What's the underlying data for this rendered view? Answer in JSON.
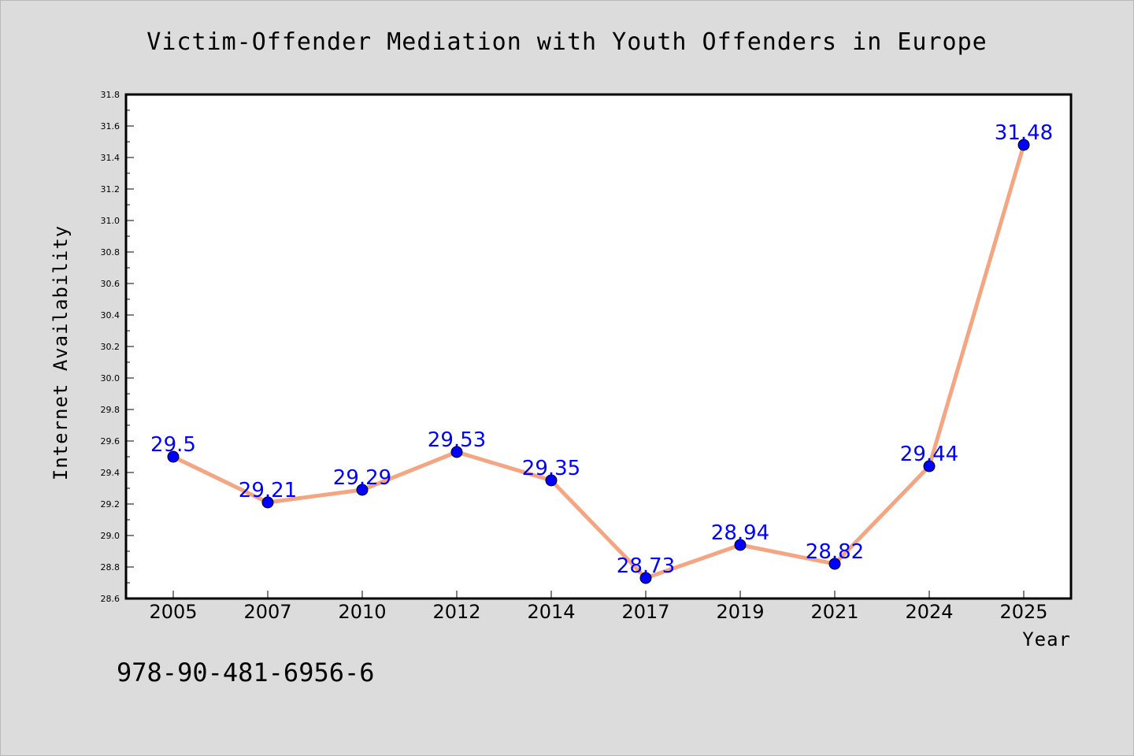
{
  "chart_data": {
    "type": "line",
    "title": "Victim-Offender Mediation with Youth Offenders in Europe",
    "xlabel": "Year",
    "ylabel": "Internet Availability",
    "categories": [
      "2005",
      "2007",
      "2010",
      "2012",
      "2014",
      "2017",
      "2019",
      "2021",
      "2024",
      "2025"
    ],
    "values": [
      29.5,
      29.21,
      29.29,
      29.53,
      29.35,
      28.73,
      28.94,
      28.82,
      29.44,
      31.48
    ],
    "data_labels": [
      "29.5",
      "29.21",
      "29.29",
      "29.53",
      "29.35",
      "28.73",
      "28.94",
      "28.82",
      "29.44",
      "31.48"
    ],
    "ylim": [
      28.6,
      31.8
    ],
    "yticks": [
      "28.6",
      "28.8",
      "29.0",
      "29.2",
      "29.4",
      "29.6",
      "29.8",
      "30.0",
      "30.2",
      "30.4",
      "30.6",
      "30.8",
      "31.0",
      "31.2",
      "31.4",
      "31.6",
      "31.8"
    ],
    "grid": false,
    "legend": "none",
    "colors": {
      "line": "#f4a582",
      "marker": "#0000ff",
      "data_label": "#0000ff",
      "background": "#dcdcdc",
      "plot_background": "#ffffff"
    }
  },
  "annotation": "978-90-481-6956-6"
}
